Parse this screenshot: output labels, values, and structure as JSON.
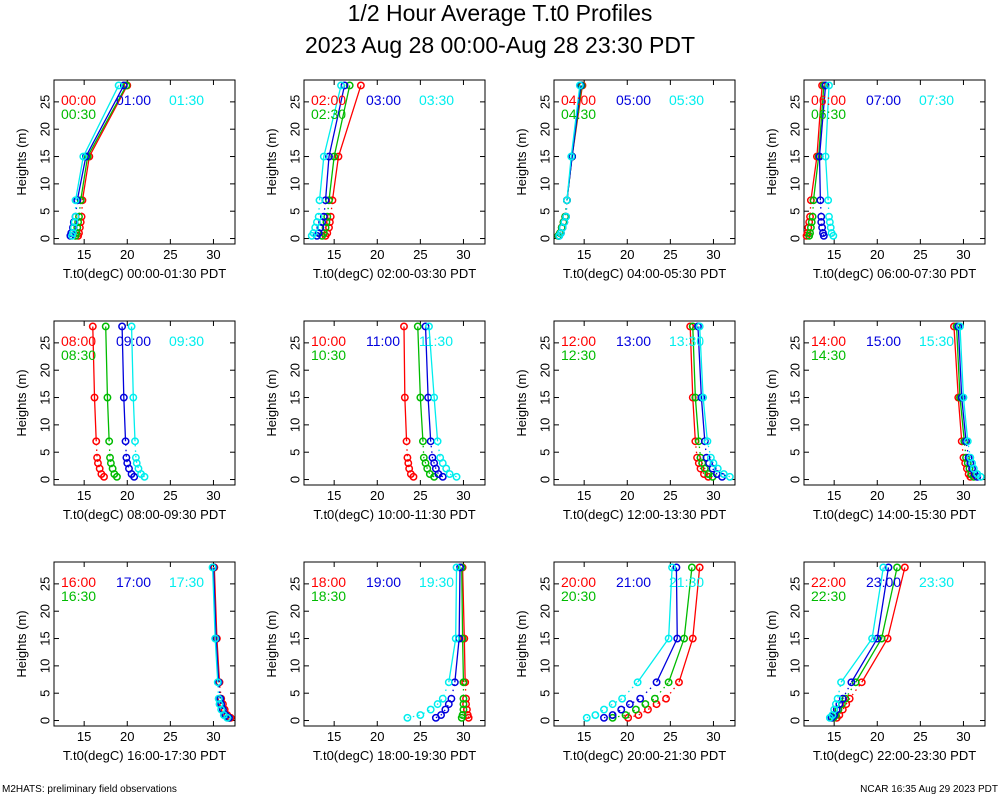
{
  "title": "1/2 Hour Average T.t0 Profiles",
  "subtitle": "2023 Aug 28 00:00-Aug 28 23:30 PDT",
  "footer_left": "M2HATS: preliminary field observations",
  "footer_right": "NCAR 16:35 Aug 29 2023 PDT",
  "colors": [
    "#ff0000",
    "#00bb00",
    "#0000dd",
    "#00eeee"
  ],
  "chart_data": [
    {
      "type": "line",
      "xlabel": "T.t0(degC) 00:00-01:30 PDT",
      "ylabel": "Heights (m)",
      "xlim": [
        11.5,
        32.5
      ],
      "ylim": [
        -1,
        29
      ],
      "xticks": [
        15,
        20,
        25,
        30
      ],
      "yticks": [
        0,
        5,
        10,
        15,
        20,
        25
      ],
      "heights": [
        0.5,
        1,
        2,
        3,
        4,
        7,
        15,
        28
      ],
      "series": [
        {
          "name": "00:00",
          "x": [
            14.3,
            14.4,
            14.5,
            14.6,
            14.7,
            14.8,
            15.6,
            20.0
          ]
        },
        {
          "name": "00:30",
          "x": [
            14.0,
            14.1,
            14.2,
            14.3,
            14.4,
            14.6,
            15.4,
            19.9
          ]
        },
        {
          "name": "01:00",
          "x": [
            13.4,
            13.5,
            13.7,
            13.8,
            14.0,
            14.2,
            15.2,
            19.6
          ]
        },
        {
          "name": "01:30",
          "x": [
            13.6,
            13.7,
            13.8,
            13.9,
            14.0,
            14.0,
            14.9,
            19.0
          ]
        }
      ]
    },
    {
      "type": "line",
      "xlabel": "T.t0(degC) 02:00-03:30 PDT",
      "ylabel": "Heights (m)",
      "xlim": [
        11.5,
        32.5
      ],
      "ylim": [
        -1,
        29
      ],
      "xticks": [
        15,
        20,
        25,
        30
      ],
      "yticks": [
        0,
        5,
        10,
        15,
        20,
        25
      ],
      "heights": [
        0.5,
        1,
        2,
        3,
        4,
        7,
        15,
        28
      ],
      "series": [
        {
          "name": "02:00",
          "x": [
            14.0,
            14.2,
            14.4,
            14.5,
            14.6,
            14.8,
            15.5,
            18.1
          ]
        },
        {
          "name": "02:30",
          "x": [
            13.6,
            13.8,
            14.0,
            14.1,
            14.2,
            14.4,
            15.0,
            16.8
          ]
        },
        {
          "name": "03:00",
          "x": [
            13.0,
            13.2,
            13.4,
            13.6,
            13.8,
            14.0,
            14.4,
            16.2
          ]
        },
        {
          "name": "03:30",
          "x": [
            12.4,
            12.6,
            12.8,
            13.0,
            13.2,
            13.3,
            13.8,
            15.8
          ]
        }
      ]
    },
    {
      "type": "line",
      "xlabel": "T.t0(degC) 04:00-05:30 PDT",
      "ylabel": "Heights (m)",
      "xlim": [
        11.5,
        32.5
      ],
      "ylim": [
        -1,
        29
      ],
      "xticks": [
        15,
        20,
        25,
        30
      ],
      "yticks": [
        0,
        5,
        10,
        15,
        20,
        25
      ],
      "heights": [
        0.5,
        1,
        2,
        3,
        4,
        7,
        15,
        28
      ],
      "series": [
        {
          "name": "04:00",
          "x": [
            12.0,
            12.2,
            12.4,
            12.6,
            12.8,
            13.0,
            13.6,
            14.8
          ]
        },
        {
          "name": "04:30",
          "x": [
            12.0,
            12.2,
            12.4,
            12.6,
            12.8,
            13.0,
            13.6,
            14.7
          ]
        },
        {
          "name": "05:00",
          "x": [
            12.1,
            12.3,
            12.5,
            12.7,
            12.9,
            13.0,
            13.6,
            14.6
          ]
        },
        {
          "name": "05:30",
          "x": [
            12.1,
            12.3,
            12.5,
            12.7,
            12.9,
            13.0,
            13.5,
            14.5
          ]
        }
      ]
    },
    {
      "type": "line",
      "xlabel": "T.t0(degC) 06:00-07:30 PDT",
      "ylabel": "Heights (m)",
      "xlim": [
        11.5,
        32.5
      ],
      "ylim": [
        -1,
        29
      ],
      "xticks": [
        15,
        20,
        25,
        30
      ],
      "yticks": [
        0,
        5,
        10,
        15,
        20,
        25
      ],
      "heights": [
        0.5,
        1,
        2,
        3,
        4,
        7,
        15,
        28
      ],
      "series": [
        {
          "name": "06:00",
          "x": [
            11.8,
            11.9,
            12.0,
            12.1,
            12.2,
            12.3,
            13.0,
            13.6
          ]
        },
        {
          "name": "06:30",
          "x": [
            12.1,
            12.2,
            12.3,
            12.4,
            12.5,
            12.6,
            13.2,
            13.8
          ]
        },
        {
          "name": "07:00",
          "x": [
            13.8,
            13.7,
            13.6,
            13.5,
            13.5,
            13.4,
            13.3,
            14.0
          ]
        },
        {
          "name": "07:30",
          "x": [
            14.9,
            14.7,
            14.6,
            14.5,
            14.4,
            14.3,
            14.0,
            14.4
          ]
        }
      ]
    },
    {
      "type": "line",
      "xlabel": "T.t0(degC) 08:00-09:30 PDT",
      "ylabel": "Heights (m)",
      "xlim": [
        11.5,
        32.5
      ],
      "ylim": [
        -1,
        29
      ],
      "xticks": [
        15,
        20,
        25,
        30
      ],
      "yticks": [
        0,
        5,
        10,
        15,
        20,
        25
      ],
      "heights": [
        0.5,
        1,
        2,
        3,
        4,
        7,
        15,
        28
      ],
      "series": [
        {
          "name": "08:00",
          "x": [
            17.3,
            17.0,
            16.8,
            16.6,
            16.5,
            16.4,
            16.2,
            16.0
          ]
        },
        {
          "name": "08:30",
          "x": [
            18.8,
            18.5,
            18.3,
            18.1,
            18.0,
            17.9,
            17.7,
            17.5
          ]
        },
        {
          "name": "09:00",
          "x": [
            20.8,
            20.5,
            20.2,
            20.0,
            19.9,
            19.8,
            19.6,
            19.4
          ]
        },
        {
          "name": "09:30",
          "x": [
            22.0,
            21.6,
            21.3,
            21.1,
            21.0,
            20.9,
            20.7,
            20.5
          ]
        }
      ]
    },
    {
      "type": "line",
      "xlabel": "T.t0(degC) 10:00-11:30 PDT",
      "ylabel": "Heights (m)",
      "xlim": [
        11.5,
        32.5
      ],
      "ylim": [
        -1,
        29
      ],
      "xticks": [
        15,
        20,
        25,
        30
      ],
      "yticks": [
        0,
        5,
        10,
        15,
        20,
        25
      ],
      "heights": [
        0.5,
        1,
        2,
        3,
        4,
        7,
        15,
        28
      ],
      "series": [
        {
          "name": "10:00",
          "x": [
            24.2,
            23.9,
            23.7,
            23.6,
            23.5,
            23.4,
            23.2,
            23.1
          ]
        },
        {
          "name": "10:30",
          "x": [
            26.6,
            26.1,
            25.8,
            25.6,
            25.4,
            25.3,
            25.0,
            24.7
          ]
        },
        {
          "name": "11:00",
          "x": [
            27.6,
            27.1,
            26.8,
            26.6,
            26.4,
            26.2,
            25.9,
            25.6
          ]
        },
        {
          "name": "11:30",
          "x": [
            29.2,
            28.4,
            28.0,
            27.6,
            27.3,
            27.0,
            26.6,
            26.0
          ]
        }
      ]
    },
    {
      "type": "line",
      "xlabel": "T.t0(degC) 12:00-13:30 PDT",
      "ylabel": "Heights (m)",
      "xlim": [
        11.5,
        32.5
      ],
      "ylim": [
        -1,
        29
      ],
      "xticks": [
        15,
        20,
        25,
        30
      ],
      "yticks": [
        0,
        5,
        10,
        15,
        20,
        25
      ],
      "heights": [
        0.5,
        1,
        2,
        3,
        4,
        7,
        15,
        28
      ],
      "series": [
        {
          "name": "12:00",
          "x": [
            29.4,
            28.9,
            28.5,
            28.3,
            28.1,
            27.9,
            27.6,
            27.3
          ]
        },
        {
          "name": "12:30",
          "x": [
            29.9,
            29.4,
            29.0,
            28.7,
            28.5,
            28.3,
            27.9,
            27.6
          ]
        },
        {
          "name": "13:00",
          "x": [
            31.0,
            30.4,
            29.9,
            29.5,
            29.2,
            29.0,
            28.6,
            28.2
          ]
        },
        {
          "name": "13:30",
          "x": [
            31.9,
            31.2,
            30.5,
            30.0,
            29.7,
            29.3,
            28.8,
            28.4
          ]
        }
      ]
    },
    {
      "type": "line",
      "xlabel": "T.t0(degC) 14:00-15:30 PDT",
      "ylabel": "Heights (m)",
      "xlim": [
        11.5,
        32.5
      ],
      "ylim": [
        -1,
        29
      ],
      "xticks": [
        15,
        20,
        25,
        30
      ],
      "yticks": [
        0,
        5,
        10,
        15,
        20,
        25
      ],
      "heights": [
        0.5,
        1,
        2,
        3,
        4,
        7,
        15,
        28
      ],
      "series": [
        {
          "name": "14:00",
          "x": [
            30.8,
            30.6,
            30.4,
            30.2,
            30.0,
            29.8,
            29.4,
            28.9
          ]
        },
        {
          "name": "14:30",
          "x": [
            31.2,
            30.9,
            30.7,
            30.5,
            30.3,
            30.1,
            29.6,
            29.2
          ]
        },
        {
          "name": "15:00",
          "x": [
            31.6,
            31.3,
            31.0,
            30.8,
            30.6,
            30.3,
            29.8,
            29.4
          ]
        },
        {
          "name": "15:30",
          "x": [
            32.0,
            31.6,
            31.2,
            31.0,
            30.8,
            30.5,
            30.0,
            29.6
          ]
        }
      ]
    },
    {
      "type": "line",
      "xlabel": "T.t0(degC) 16:00-17:30 PDT",
      "ylabel": "Heights (m)",
      "xlim": [
        11.5,
        32.5
      ],
      "ylim": [
        -1,
        29
      ],
      "xticks": [
        15,
        20,
        25,
        30
      ],
      "yticks": [
        0,
        5,
        10,
        15,
        20,
        25
      ],
      "heights": [
        0.5,
        1,
        2,
        3,
        4,
        7,
        15,
        28
      ],
      "series": [
        {
          "name": "16:00",
          "x": [
            32.0,
            31.6,
            31.3,
            31.1,
            30.9,
            30.7,
            30.4,
            30.1
          ]
        },
        {
          "name": "16:30",
          "x": [
            31.8,
            31.4,
            31.1,
            30.9,
            30.8,
            30.6,
            30.3,
            30.0
          ]
        },
        {
          "name": "17:00",
          "x": [
            31.8,
            31.4,
            31.1,
            30.9,
            30.8,
            30.6,
            30.3,
            30.0
          ]
        },
        {
          "name": "17:30",
          "x": [
            31.6,
            31.2,
            30.9,
            30.7,
            30.6,
            30.5,
            30.2,
            29.9
          ]
        }
      ]
    },
    {
      "type": "line",
      "xlabel": "T.t0(degC) 18:00-19:30 PDT",
      "ylabel": "Heights (m)",
      "xlim": [
        11.5,
        32.5
      ],
      "ylim": [
        -1,
        29
      ],
      "xticks": [
        15,
        20,
        25,
        30
      ],
      "yticks": [
        0,
        5,
        10,
        15,
        20,
        25
      ],
      "heights": [
        0.5,
        1,
        2,
        3,
        4,
        7,
        15,
        28
      ],
      "series": [
        {
          "name": "18:00",
          "x": [
            30.6,
            30.5,
            30.4,
            30.3,
            30.3,
            30.2,
            30.1,
            29.9
          ]
        },
        {
          "name": "18:30",
          "x": [
            29.8,
            29.9,
            30.0,
            30.0,
            30.0,
            30.0,
            29.9,
            29.8
          ]
        },
        {
          "name": "19:00",
          "x": [
            26.8,
            27.4,
            27.9,
            28.3,
            28.6,
            29.0,
            29.5,
            29.6
          ]
        },
        {
          "name": "19:30",
          "x": [
            23.5,
            25.0,
            26.2,
            27.0,
            27.6,
            28.3,
            29.1,
            29.2
          ]
        }
      ]
    },
    {
      "type": "line",
      "xlabel": "T.t0(degC) 20:00-21:30 PDT",
      "ylabel": "Heights (m)",
      "xlim": [
        11.5,
        32.5
      ],
      "ylim": [
        -1,
        29
      ],
      "xticks": [
        15,
        20,
        25,
        30
      ],
      "yticks": [
        0,
        5,
        10,
        15,
        20,
        25
      ],
      "heights": [
        0.5,
        1,
        2,
        3,
        4,
        7,
        15,
        28
      ],
      "series": [
        {
          "name": "20:00",
          "x": [
            20.1,
            21.3,
            22.4,
            23.4,
            24.5,
            26.0,
            27.6,
            28.4
          ]
        },
        {
          "name": "20:30",
          "x": [
            18.3,
            19.8,
            21.0,
            22.1,
            23.2,
            24.8,
            26.6,
            27.5
          ]
        },
        {
          "name": "21:00",
          "x": [
            17.3,
            18.3,
            19.3,
            20.3,
            21.5,
            23.4,
            25.8,
            25.7
          ]
        },
        {
          "name": "21:30",
          "x": [
            15.3,
            16.3,
            17.3,
            18.3,
            19.4,
            21.2,
            24.8,
            25.2
          ]
        }
      ]
    },
    {
      "type": "line",
      "xlabel": "T.t0(degC) 22:00-23:30 PDT",
      "ylabel": "Heights (m)",
      "xlim": [
        11.5,
        32.5
      ],
      "ylim": [
        -1,
        29
      ],
      "xticks": [
        15,
        20,
        25,
        30
      ],
      "yticks": [
        0,
        5,
        10,
        15,
        20,
        25
      ],
      "heights": [
        0.5,
        1,
        2,
        3,
        4,
        7,
        15,
        28
      ],
      "series": [
        {
          "name": "22:00",
          "x": [
            15.3,
            15.6,
            16.0,
            16.4,
            16.8,
            18.2,
            21.2,
            23.2
          ]
        },
        {
          "name": "22:30",
          "x": [
            14.9,
            15.2,
            15.5,
            15.9,
            16.3,
            17.5,
            20.5,
            22.3
          ]
        },
        {
          "name": "23:00",
          "x": [
            14.7,
            15.0,
            15.3,
            15.6,
            16.0,
            17.0,
            20.0,
            21.3
          ]
        },
        {
          "name": "23:30",
          "x": [
            14.5,
            14.8,
            15.0,
            15.2,
            15.4,
            15.8,
            19.4,
            20.7
          ]
        }
      ]
    }
  ]
}
